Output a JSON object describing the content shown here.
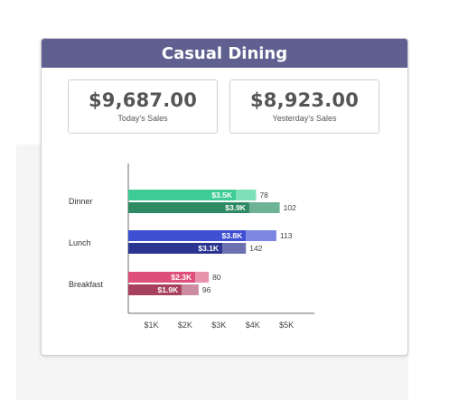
{
  "card": {
    "title": "Casual Dining"
  },
  "kpis": [
    {
      "value": "$9,687.00",
      "label": "Today's Sales"
    },
    {
      "value": "$8,923.00",
      "label": "Yesterday's Sales"
    }
  ],
  "chart_data": {
    "type": "bar",
    "orientation": "horizontal",
    "categories": [
      "Dinner",
      "Lunch",
      "Breakfast"
    ],
    "x_ticks": [
      "$1K",
      "$2K",
      "$3K",
      "$4K",
      "$5K"
    ],
    "xlim": [
      0.5,
      5.5
    ],
    "groups": [
      {
        "category": "Dinner",
        "rows": [
          {
            "sales": 3.5,
            "sales_label": "$3.5K",
            "extension": 0.6,
            "count": "78",
            "main_color": "#3ecb96",
            "ext_color": "#7ee0b8"
          },
          {
            "sales": 3.9,
            "sales_label": "$3.9K",
            "extension": 0.9,
            "count": "102",
            "main_color": "#2e8a63",
            "ext_color": "#6fb396"
          }
        ]
      },
      {
        "category": "Lunch",
        "rows": [
          {
            "sales": 3.8,
            "sales_label": "$3.8K",
            "extension": 0.9,
            "count": "113",
            "main_color": "#3f4fd3",
            "ext_color": "#7d87e2"
          },
          {
            "sales": 3.1,
            "sales_label": "$3.1K",
            "extension": 0.7,
            "count": "142",
            "main_color": "#2c3491",
            "ext_color": "#6c71b0"
          }
        ]
      },
      {
        "category": "Breakfast",
        "rows": [
          {
            "sales": 2.3,
            "sales_label": "$2.3K",
            "extension": 0.4,
            "count": "80",
            "main_color": "#df4f7b",
            "ext_color": "#e893ae"
          },
          {
            "sales": 1.9,
            "sales_label": "$1.9K",
            "extension": 0.5,
            "count": "96",
            "main_color": "#a8405f",
            "ext_color": "#cc8ba0"
          }
        ]
      }
    ]
  }
}
